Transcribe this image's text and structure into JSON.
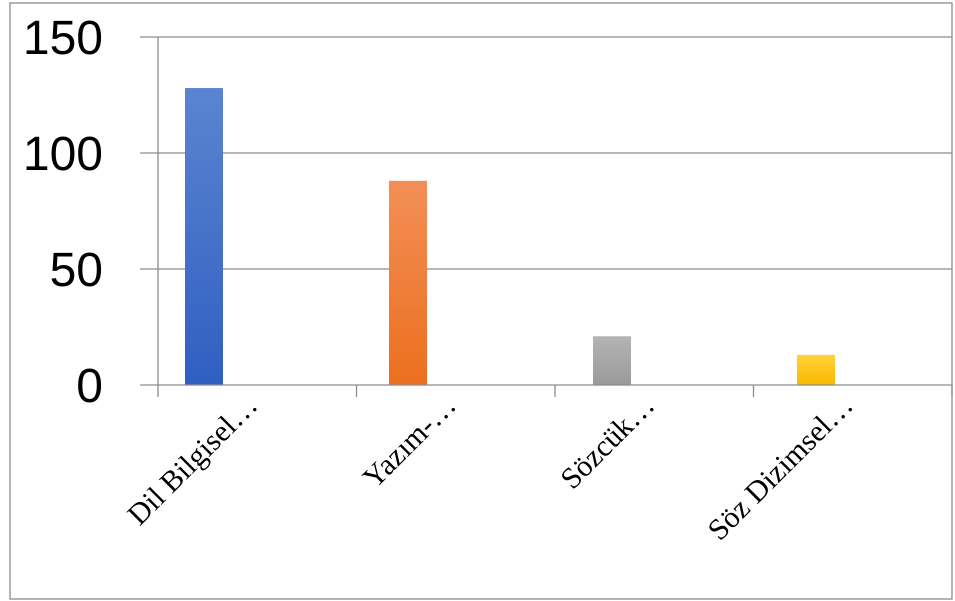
{
  "chart_data": {
    "type": "bar",
    "categories": [
      "Dil Bilgisel…",
      "Yazım-…",
      "Sözcük…",
      "Söz Dizimsel…"
    ],
    "values": [
      128,
      88,
      21,
      13
    ],
    "ylim": [
      0,
      150
    ],
    "yticks": [
      "0",
      "50",
      "100",
      "150"
    ],
    "grid": true,
    "legend": "none",
    "colors": {
      "bars": [
        [
          "#5b84d0",
          "#2f5fc2"
        ],
        [
          "#f28f57",
          "#ec6f1e"
        ],
        [
          "#b4b4b4",
          "#9a9a9a"
        ],
        [
          "#ffd23a",
          "#fbb800"
        ]
      ],
      "grid": "#8c8c8c",
      "border": "#8c8c8c"
    }
  }
}
